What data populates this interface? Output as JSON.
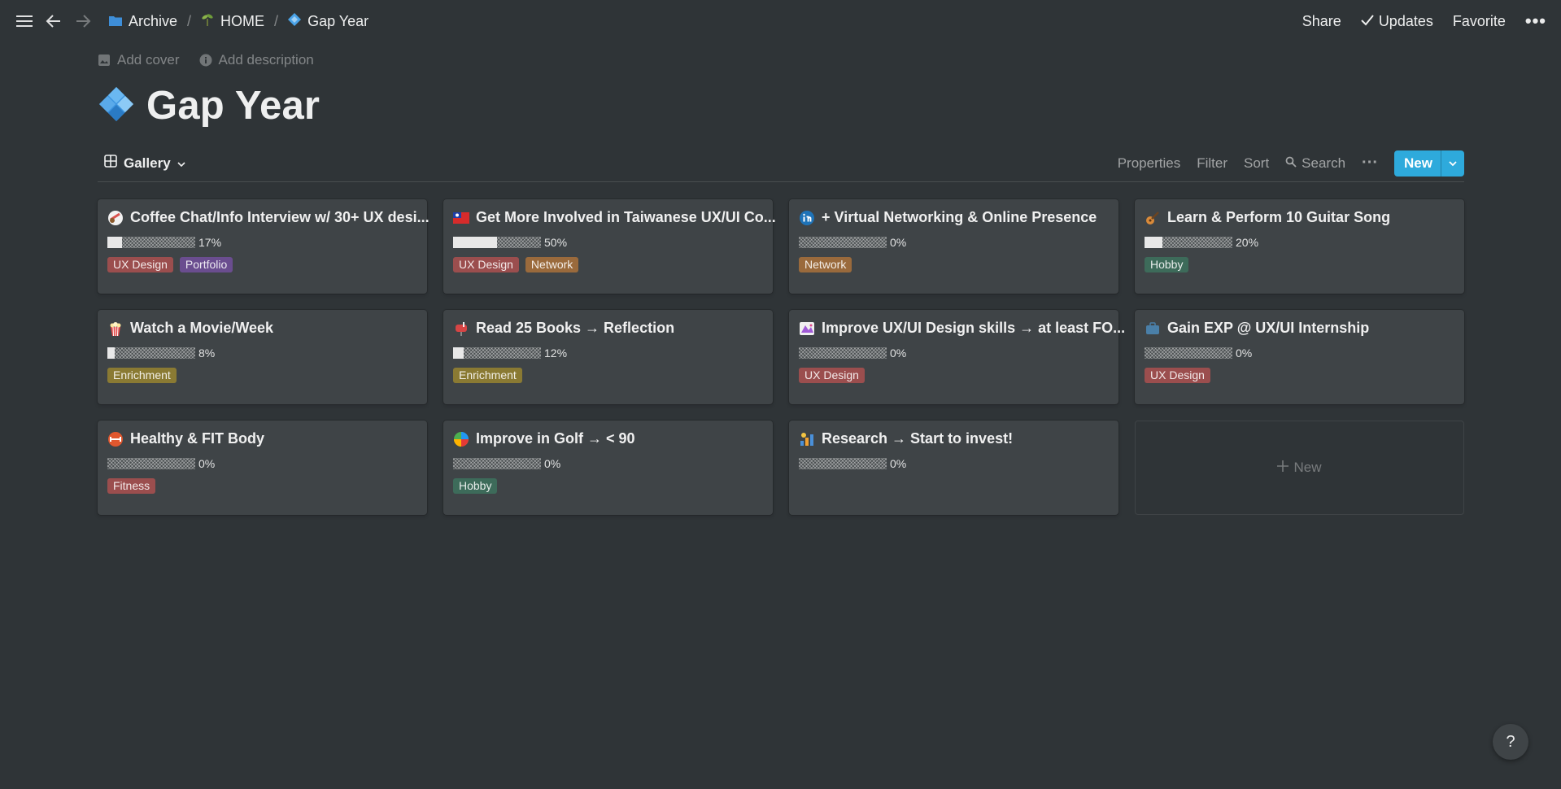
{
  "topbar": {
    "breadcrumbs": [
      {
        "label": "Archive",
        "icon": "folder-icon"
      },
      {
        "label": "HOME",
        "icon": "sprout-icon"
      },
      {
        "label": "Gap Year",
        "icon": "diamond-icon"
      }
    ],
    "separator": "/",
    "share": "Share",
    "updates": "Updates",
    "favorite": "Favorite",
    "more": "•••"
  },
  "page": {
    "add_cover": "Add cover",
    "add_description": "Add description",
    "title": "Gap Year"
  },
  "viewbar": {
    "view_label": "Gallery",
    "properties": "Properties",
    "filter": "Filter",
    "sort": "Sort",
    "search": "Search",
    "more": "···",
    "new": "New"
  },
  "cards": [
    {
      "title": "Coffee Chat/Info Interview w/ 30+ UX desi...",
      "progress": "17%",
      "progress_value": 0.17,
      "icon": "coffee-icon",
      "tags": [
        {
          "label": "UX Design",
          "color": "#9b4e4e"
        },
        {
          "label": "Portfolio",
          "color": "#6a4d8f"
        }
      ]
    },
    {
      "title": "Get More Involved in Taiwanese UX/UI Co...",
      "progress": "50%",
      "progress_value": 0.5,
      "icon": "taiwan-flag-icon",
      "tags": [
        {
          "label": "UX Design",
          "color": "#9b4e4e"
        },
        {
          "label": "Network",
          "color": "#9a6a3c"
        }
      ]
    },
    {
      "title": "+ Virtual Networking & Online Presence",
      "progress": "0%",
      "progress_value": 0,
      "icon": "linkedin-icon",
      "tags": [
        {
          "label": "Network",
          "color": "#9a6a3c"
        }
      ]
    },
    {
      "title": "Learn & Perform 10 Guitar Song",
      "progress": "20%",
      "progress_value": 0.2,
      "icon": "guitar-icon",
      "tags": [
        {
          "label": "Hobby",
          "color": "#3d6b5a"
        }
      ]
    },
    {
      "title": "Watch a Movie/Week",
      "progress": "8%",
      "progress_value": 0.08,
      "icon": "popcorn-icon",
      "tags": [
        {
          "label": "Enrichment",
          "color": "#8a7a33"
        }
      ]
    },
    {
      "title": "Read 25 Books → Reflection",
      "progress": "12%",
      "progress_value": 0.12,
      "icon": "mailbox-icon",
      "tags": [
        {
          "label": "Enrichment",
          "color": "#8a7a33"
        }
      ]
    },
    {
      "title": "Improve UX/UI Design skills → at least FO...",
      "progress": "0%",
      "progress_value": 0,
      "icon": "figma-icon",
      "tags": [
        {
          "label": "UX Design",
          "color": "#9b4e4e"
        }
      ]
    },
    {
      "title": "Gain EXP @ UX/UI Internship",
      "progress": "0%",
      "progress_value": 0,
      "icon": "briefcase-icon",
      "tags": [
        {
          "label": "UX Design",
          "color": "#9b4e4e"
        }
      ]
    },
    {
      "title": "Healthy & FIT Body",
      "progress": "0%",
      "progress_value": 0,
      "icon": "fitness-icon",
      "tags": [
        {
          "label": "Fitness",
          "color": "#9b4e4e"
        }
      ]
    },
    {
      "title": "Improve in Golf → < 90",
      "progress": "0%",
      "progress_value": 0,
      "icon": "golf-icon",
      "tags": [
        {
          "label": "Hobby",
          "color": "#3d6b5a"
        }
      ]
    },
    {
      "title": "Research → Start to invest!",
      "progress": "0%",
      "progress_value": 0,
      "icon": "chart-invest-icon",
      "tags": []
    }
  ],
  "new_card": "New",
  "help": "?"
}
